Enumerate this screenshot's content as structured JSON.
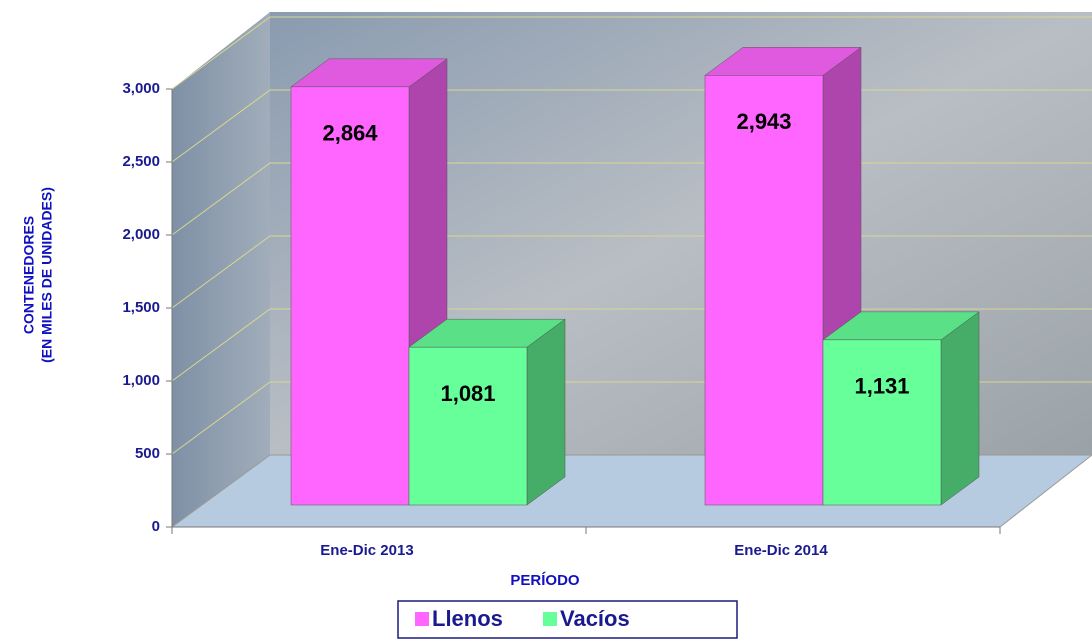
{
  "chart_data": {
    "type": "bar",
    "categories": [
      "Ene-Dic 2013",
      "Ene-Dic 2014"
    ],
    "series": [
      {
        "name": "Llenos",
        "color": "#ff66ff",
        "values": [
          2864,
          2943
        ],
        "value_labels": [
          "2,864",
          "2,943"
        ]
      },
      {
        "name": "Vacíos",
        "color": "#66ff99",
        "values": [
          1081,
          1131
        ],
        "value_labels": [
          "1,081",
          "1,131"
        ]
      }
    ],
    "ylim": [
      0,
      3000
    ],
    "yticks": [
      0,
      500,
      {
        "value": 1000,
        "label": "1,000"
      },
      {
        "value": 1500,
        "label": "1,500"
      },
      {
        "value": 2000,
        "label": "2,000"
      },
      {
        "value": 2500,
        "label": "2,500"
      },
      {
        "value": 3000,
        "label": "3,000"
      }
    ],
    "x_label": "PERÍODO",
    "y_label": [
      "CONTENEDORES",
      "(EN MILES DE UNIDADES)"
    ],
    "grid": true,
    "legend": "bottom"
  }
}
